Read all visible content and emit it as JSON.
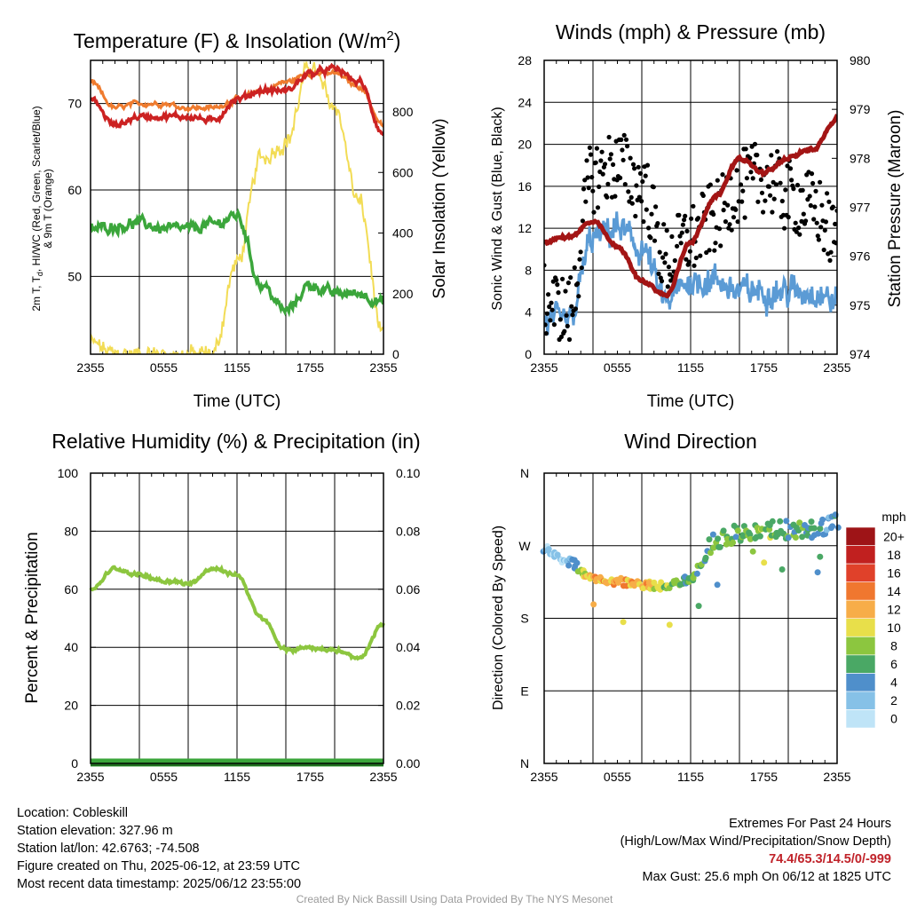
{
  "panels": {
    "temperature": {
      "title_text": "Temperature (F) & Insolation (W/m",
      "title_sup": "2",
      "title_close": ")",
      "ylabel_left": [
        "2m T, T",
        "d",
        ", HI/WC (Red, Green, Scarlet/Blue)",
        "& 9m T (Orange)"
      ],
      "ylabel_right": "Solar Insolation (Yellow)",
      "xlabel": "Time (UTC)",
      "xticks": [
        "2355",
        "0555",
        "1155",
        "1755",
        "2355"
      ],
      "yticks_left": [
        "50",
        "60",
        "70"
      ],
      "yticks_right": [
        "0",
        "200",
        "400",
        "600",
        "800"
      ]
    },
    "winds": {
      "title": "Winds (mph) & Pressure (mb)",
      "ylabel_left": "Sonic Wind & Gust (Blue, Black)",
      "ylabel_right": "Station Pressure (Maroon)",
      "xlabel": "Time (UTC)",
      "xticks": [
        "2355",
        "0555",
        "1155",
        "1755",
        "2355"
      ],
      "yticks_left": [
        "0",
        "4",
        "8",
        "12",
        "16",
        "20",
        "24",
        "28"
      ],
      "yticks_right": [
        "974",
        "975",
        "976",
        "977",
        "978",
        "979",
        "980"
      ]
    },
    "humidity": {
      "title": "Relative Humidity (%) & Precipitation (in)",
      "ylabel_left": "Percent & Precipitation",
      "xticks": [
        "2355",
        "0555",
        "1155",
        "1755",
        "2355"
      ],
      "yticks_left": [
        "0",
        "20",
        "40",
        "60",
        "80",
        "100"
      ],
      "yticks_right": [
        "0.00",
        "0.02",
        "0.04",
        "0.06",
        "0.08",
        "0.10"
      ]
    },
    "direction": {
      "title": "Wind Direction",
      "ylabel_left": "Direction (Colored By Speed)",
      "xticks": [
        "2355",
        "0555",
        "1155",
        "1755",
        "2355"
      ],
      "yticks_left": [
        "N",
        "E",
        "S",
        "W",
        "N"
      ],
      "colorbar_title": "mph",
      "colorbar_labels": [
        "0",
        "2",
        "4",
        "6",
        "8",
        "10",
        "12",
        "14",
        "16",
        "18",
        "20+"
      ],
      "colorbar_colors": [
        "#bfe4f7",
        "#86c1e7",
        "#4f8fcb",
        "#4aa865",
        "#8cc63f",
        "#e8df4a",
        "#f7ad48",
        "#f0772f",
        "#e0412a",
        "#c1201f",
        "#9e1417"
      ]
    }
  },
  "colors": {
    "temp_red": "#cc2222",
    "temp_orange": "#ef7b2e",
    "dew_green": "#3ba63b",
    "solar_yellow": "#f2dc55",
    "wind_blue": "#5b9bd5",
    "gust_black": "#000000",
    "pressure_maroon": "#a31515",
    "rh_green": "#8cc63f",
    "precip_green": "#3ba63b"
  },
  "chart_data": [
    {
      "type": "line",
      "title": "Temperature (F) & Insolation (W/m2)",
      "x": [
        "2355",
        "0155",
        "0355",
        "0555",
        "0755",
        "0955",
        "1155",
        "1355",
        "1555",
        "1755",
        "1955",
        "2155",
        "2355"
      ],
      "series": [
        {
          "name": "2m T (Red)",
          "axis": "left",
          "values": [
            70.5,
            67.5,
            68.5,
            68.5,
            68.5,
            68.0,
            70.5,
            71.5,
            71.5,
            73.5,
            74.0,
            72.5,
            66.5
          ]
        },
        {
          "name": "9m T (Orange)",
          "axis": "left",
          "values": [
            72.5,
            69.5,
            70.0,
            70.0,
            69.5,
            69.5,
            70.5,
            71.5,
            72.5,
            73.5,
            73.5,
            72.0,
            67.5
          ]
        },
        {
          "name": "Td (Green)",
          "axis": "left",
          "values": [
            55.5,
            55.8,
            56.2,
            55.5,
            55.5,
            56.0,
            57.0,
            49.0,
            46.0,
            49.0,
            48.0,
            48.0,
            47.0
          ]
        },
        {
          "name": "Solar Insolation (Yellow)",
          "axis": "right",
          "values": [
            35,
            0,
            0,
            0,
            0,
            0,
            300,
            650,
            700,
            950,
            820,
            500,
            50
          ]
        }
      ],
      "ylim": [
        41,
        75
      ],
      "ylim_right": [
        0,
        970
      ]
    },
    {
      "type": "line",
      "title": "Winds (mph) & Pressure (mb)",
      "x": [
        "2355",
        "0155",
        "0355",
        "0555",
        "0755",
        "0955",
        "1155",
        "1355",
        "1555",
        "1755",
        "1955",
        "2155",
        "2355"
      ],
      "series": [
        {
          "name": "Sonic Wind (Blue)",
          "axis": "left",
          "values": [
            3,
            3,
            11,
            12,
            10,
            5,
            7,
            7,
            6,
            6,
            6,
            6,
            5
          ]
        },
        {
          "name": "Gust (Black)",
          "axis": "left",
          "values": [
            5,
            4,
            17,
            18,
            16,
            9,
            11,
            13,
            16,
            17,
            15,
            14,
            11
          ]
        },
        {
          "name": "Station Pressure (Maroon)",
          "axis": "right",
          "values": [
            976.3,
            976.4,
            976.7,
            976.2,
            975.5,
            975.2,
            976.3,
            977.2,
            978.0,
            977.7,
            978.0,
            978.2,
            978.8
          ]
        }
      ],
      "ylim": [
        0,
        28
      ],
      "ylim_right": [
        974,
        980
      ]
    },
    {
      "type": "line",
      "title": "Relative Humidity (%) & Precipitation (in)",
      "x": [
        "2355",
        "0155",
        "0355",
        "0555",
        "0755",
        "0955",
        "1155",
        "1355",
        "1555",
        "1755",
        "1955",
        "2155",
        "2355"
      ],
      "series": [
        {
          "name": "Relative Humidity",
          "axis": "left",
          "values": [
            60,
            67,
            65,
            63,
            62,
            67,
            65,
            50,
            39,
            40,
            39,
            36,
            48
          ]
        },
        {
          "name": "Precipitation",
          "axis": "right",
          "values": [
            0,
            0,
            0,
            0,
            0,
            0,
            0,
            0,
            0,
            0,
            0,
            0,
            0
          ]
        }
      ],
      "ylim": [
        0,
        100
      ],
      "ylim_right": [
        0,
        0.1
      ]
    },
    {
      "type": "scatter",
      "title": "Wind Direction",
      "yaxis": "direction, N-E-S-W-N (degrees 0-360)",
      "x": [
        "2355",
        "0155",
        "0355",
        "0555",
        "0755",
        "0955",
        "1155",
        "1355",
        "1555",
        "1755",
        "1955",
        "2155",
        "2355"
      ],
      "direction_deg": [
        265,
        250,
        230,
        225,
        222,
        220,
        228,
        275,
        285,
        290,
        290,
        290,
        300
      ],
      "speed_mph": [
        2,
        2,
        12,
        12,
        12,
        8,
        6,
        6,
        6,
        8,
        6,
        5,
        4
      ],
      "ylim": [
        0,
        360
      ]
    }
  ],
  "info": {
    "location": "Location: Cobleskill",
    "elevation": "Station elevation: 327.96 m",
    "latlon": "Station lat/lon: 42.6763; -74.508",
    "created": "Figure created on Thu, 2025-06-12, at 23:59 UTC",
    "recent": "Most recent data timestamp: 2025/06/12 23:55:00"
  },
  "extremes": {
    "title": "Extremes For Past 24 Hours",
    "subtitle": "(High/Low/Max Wind/Precipitation/Snow Depth)",
    "values": "74.4/65.3/14.5/0/-999",
    "gust": "Max Gust: 25.6 mph On 06/12 at 1825 UTC"
  },
  "credit": "Created By Nick Bassill Using Data Provided By The NYS Mesonet"
}
